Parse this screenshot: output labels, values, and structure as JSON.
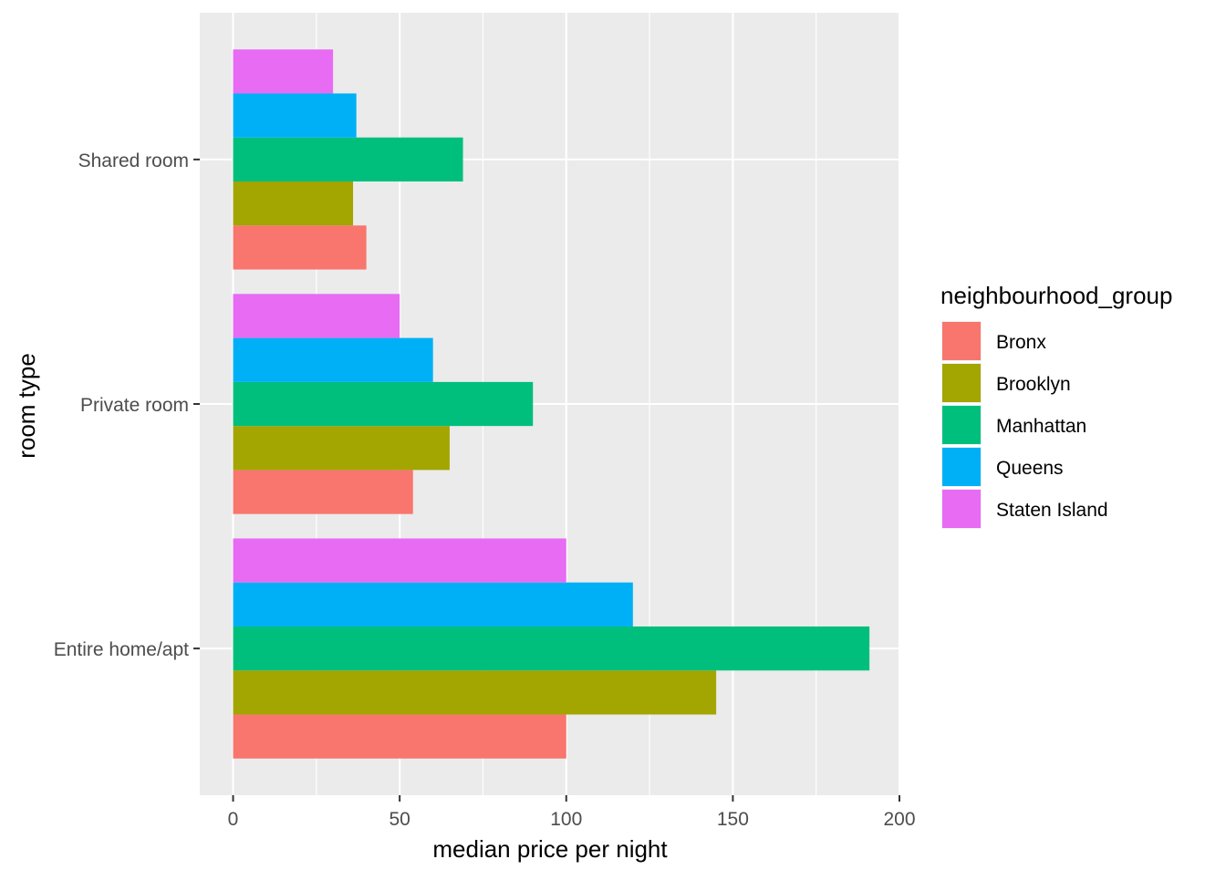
{
  "chart_data": {
    "type": "bar",
    "orientation": "horizontal",
    "position": "dodge",
    "xlabel": "median price per night",
    "ylabel": "room type",
    "xlim": [
      -10,
      200
    ],
    "x_ticks": [
      0,
      50,
      100,
      150,
      200
    ],
    "x_tick_labels": [
      "0",
      "50",
      "100",
      "150",
      "200"
    ],
    "categories": [
      "Entire home/apt",
      "Private room",
      "Shared room"
    ],
    "grid": true,
    "legend": {
      "title": "neighbourhood_group",
      "position": "right"
    },
    "series": [
      {
        "name": "Bronx",
        "color": "#F8766D",
        "values": [
          100,
          54,
          40
        ]
      },
      {
        "name": "Brooklyn",
        "color": "#A3A500",
        "values": [
          145,
          65,
          36
        ]
      },
      {
        "name": "Manhattan",
        "color": "#00BF7D",
        "values": [
          191,
          90,
          69
        ]
      },
      {
        "name": "Queens",
        "color": "#00B0F6",
        "values": [
          120,
          60,
          37
        ]
      },
      {
        "name": "Staten Island",
        "color": "#E76BF3",
        "values": [
          100,
          50,
          30
        ]
      }
    ]
  },
  "colors": {
    "panel_background": "#EBEBEB",
    "grid_major": "#FFFFFF",
    "axis_text": "#4D4D4D",
    "axis_title": "#000000"
  }
}
